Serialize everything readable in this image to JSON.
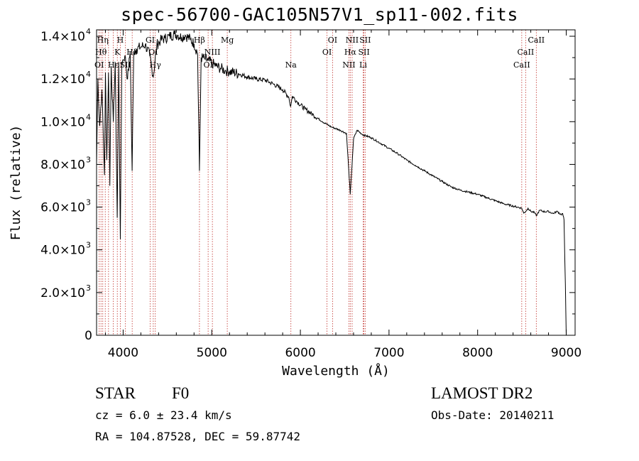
{
  "chart_data": {
    "type": "line",
    "title": "spec-56700-GAC105N57V1_sp11-002.fits",
    "xlabel": "Wavelength (Å)",
    "ylabel": "Flux (relative)",
    "xlim": [
      3700,
      9100
    ],
    "ylim": [
      0,
      14300
    ],
    "x_ticks": [
      4000,
      5000,
      6000,
      7000,
      8000,
      9000
    ],
    "x_tick_labels": [
      "4000",
      "5000",
      "6000",
      "7000",
      "8000",
      "9000"
    ],
    "y_ticks": [
      0,
      2000,
      4000,
      6000,
      8000,
      10000,
      12000,
      14000
    ],
    "y_tick_labels": [
      {
        "mant": "0",
        "exp": ""
      },
      {
        "mant": "2.0×10",
        "exp": "3"
      },
      {
        "mant": "4.0×10",
        "exp": "3"
      },
      {
        "mant": "6.0×10",
        "exp": "3"
      },
      {
        "mant": "8.0×10",
        "exp": "3"
      },
      {
        "mant": "1.0×10",
        "exp": "4"
      },
      {
        "mant": "1.2×10",
        "exp": "4"
      },
      {
        "mant": "1.4×10",
        "exp": "4"
      }
    ],
    "grid": false,
    "series": [
      {
        "color": "#000000",
        "x": [
          3700,
          3715,
          3735,
          3760,
          3790,
          3800,
          3815,
          3835,
          3850,
          3865,
          3889,
          3910,
          3933,
          3950,
          3968,
          3985,
          4000,
          4020,
          4050,
          4080,
          4101,
          4120,
          4150,
          4200,
          4250,
          4300,
          4340,
          4380,
          4420,
          4470,
          4520,
          4580,
          4620,
          4660,
          4700,
          4760,
          4800,
          4840,
          4861,
          4880,
          4920,
          4960,
          5000,
          5050,
          5100,
          5150,
          5200,
          5300,
          5400,
          5500,
          5600,
          5700,
          5800,
          5870,
          5890,
          5910,
          5960,
          6050,
          6150,
          6250,
          6350,
          6450,
          6520,
          6563,
          6600,
          6640,
          6700,
          6800,
          6900,
          7000,
          7100,
          7200,
          7300,
          7400,
          7500,
          7600,
          7700,
          7800,
          7900,
          8000,
          8100,
          8200,
          8300,
          8400,
          8498,
          8520,
          8542,
          8570,
          8600,
          8640,
          8662,
          8700,
          8760,
          8800,
          8850,
          8900,
          8940,
          8960,
          8975,
          8990,
          9000
        ],
        "y": [
          8000,
          12000,
          9800,
          11500,
          7500,
          12300,
          8200,
          12300,
          7000,
          12600,
          10000,
          12800,
          5500,
          12800,
          4500,
          12800,
          12900,
          13100,
          12000,
          13300,
          7700,
          13300,
          13400,
          13500,
          13600,
          13100,
          12100,
          13600,
          13800,
          13900,
          14000,
          14100,
          14050,
          13950,
          14050,
          13850,
          13650,
          13200,
          7700,
          13000,
          12950,
          12850,
          12750,
          12600,
          12500,
          12400,
          12350,
          12250,
          12100,
          12000,
          11950,
          11750,
          11500,
          11150,
          10700,
          11200,
          10950,
          10600,
          10300,
          10000,
          9750,
          9600,
          9450,
          6600,
          9200,
          9600,
          9400,
          9250,
          9000,
          8750,
          8500,
          8200,
          7950,
          7700,
          7450,
          7200,
          6950,
          6800,
          6700,
          6600,
          6450,
          6300,
          6150,
          6050,
          5950,
          5720,
          5800,
          5950,
          5800,
          5750,
          5600,
          5850,
          5780,
          5800,
          5700,
          5800,
          5650,
          5700,
          5400,
          2400,
          0
        ]
      }
    ],
    "line_color": "#c0302a",
    "lines": [
      {
        "x": 3730,
        "label": "OI",
        "row": 3
      },
      {
        "x": 3750,
        "label": "Hθ",
        "row": 2
      },
      {
        "x": 3770,
        "label": "Hη",
        "row": 1
      },
      {
        "x": 3798,
        "label": "",
        "row": 0
      },
      {
        "x": 3835,
        "label": "",
        "row": 0
      },
      {
        "x": 3889,
        "label": "Hε",
        "row": 3
      },
      {
        "x": 3934,
        "label": "K",
        "row": 2
      },
      {
        "x": 3968,
        "label": "H",
        "row": 1
      },
      {
        "x": 4026,
        "label": "SII",
        "row": 3
      },
      {
        "x": 4102,
        "label": "Hδ",
        "row": 2
      },
      {
        "x": 4305,
        "label": "GI",
        "row": 1
      },
      {
        "x": 4340,
        "label": "OI",
        "row": 2
      },
      {
        "x": 4363,
        "label": "Hγ",
        "row": 3
      },
      {
        "x": 4861,
        "label": "Hβ",
        "row": 1
      },
      {
        "x": 4959,
        "label": "OI",
        "row": 3
      },
      {
        "x": 5007,
        "label": "NIII",
        "row": 2
      },
      {
        "x": 5175,
        "label": "Mg",
        "row": 1
      },
      {
        "x": 5893,
        "label": "Na",
        "row": 3
      },
      {
        "x": 6300,
        "label": "OI",
        "row": 2
      },
      {
        "x": 6363,
        "label": "OI",
        "row": 1
      },
      {
        "x": 6548,
        "label": "NII",
        "row": 3
      },
      {
        "x": 6563,
        "label": "Hα",
        "row": 2
      },
      {
        "x": 6584,
        "label": "NII",
        "row": 1
      },
      {
        "x": 6717,
        "label": "SII",
        "row": 2
      },
      {
        "x": 6731,
        "label": "SII",
        "row": 1
      },
      {
        "x": 6708,
        "label": "Li",
        "row": 3
      },
      {
        "x": 8498,
        "label": "CaII",
        "row": 3
      },
      {
        "x": 8542,
        "label": "CaII",
        "row": 2
      },
      {
        "x": 8662,
        "label": "CaII",
        "row": 1
      }
    ]
  },
  "info": {
    "object": "STAR",
    "subclass": "F0",
    "survey": "LAMOST DR2",
    "redshift": "cz = 6.0 ± 23.4 km/s",
    "obs_date": "Obs-Date: 20140211",
    "coords": "RA = 104.87528, DEC =  59.87742"
  }
}
